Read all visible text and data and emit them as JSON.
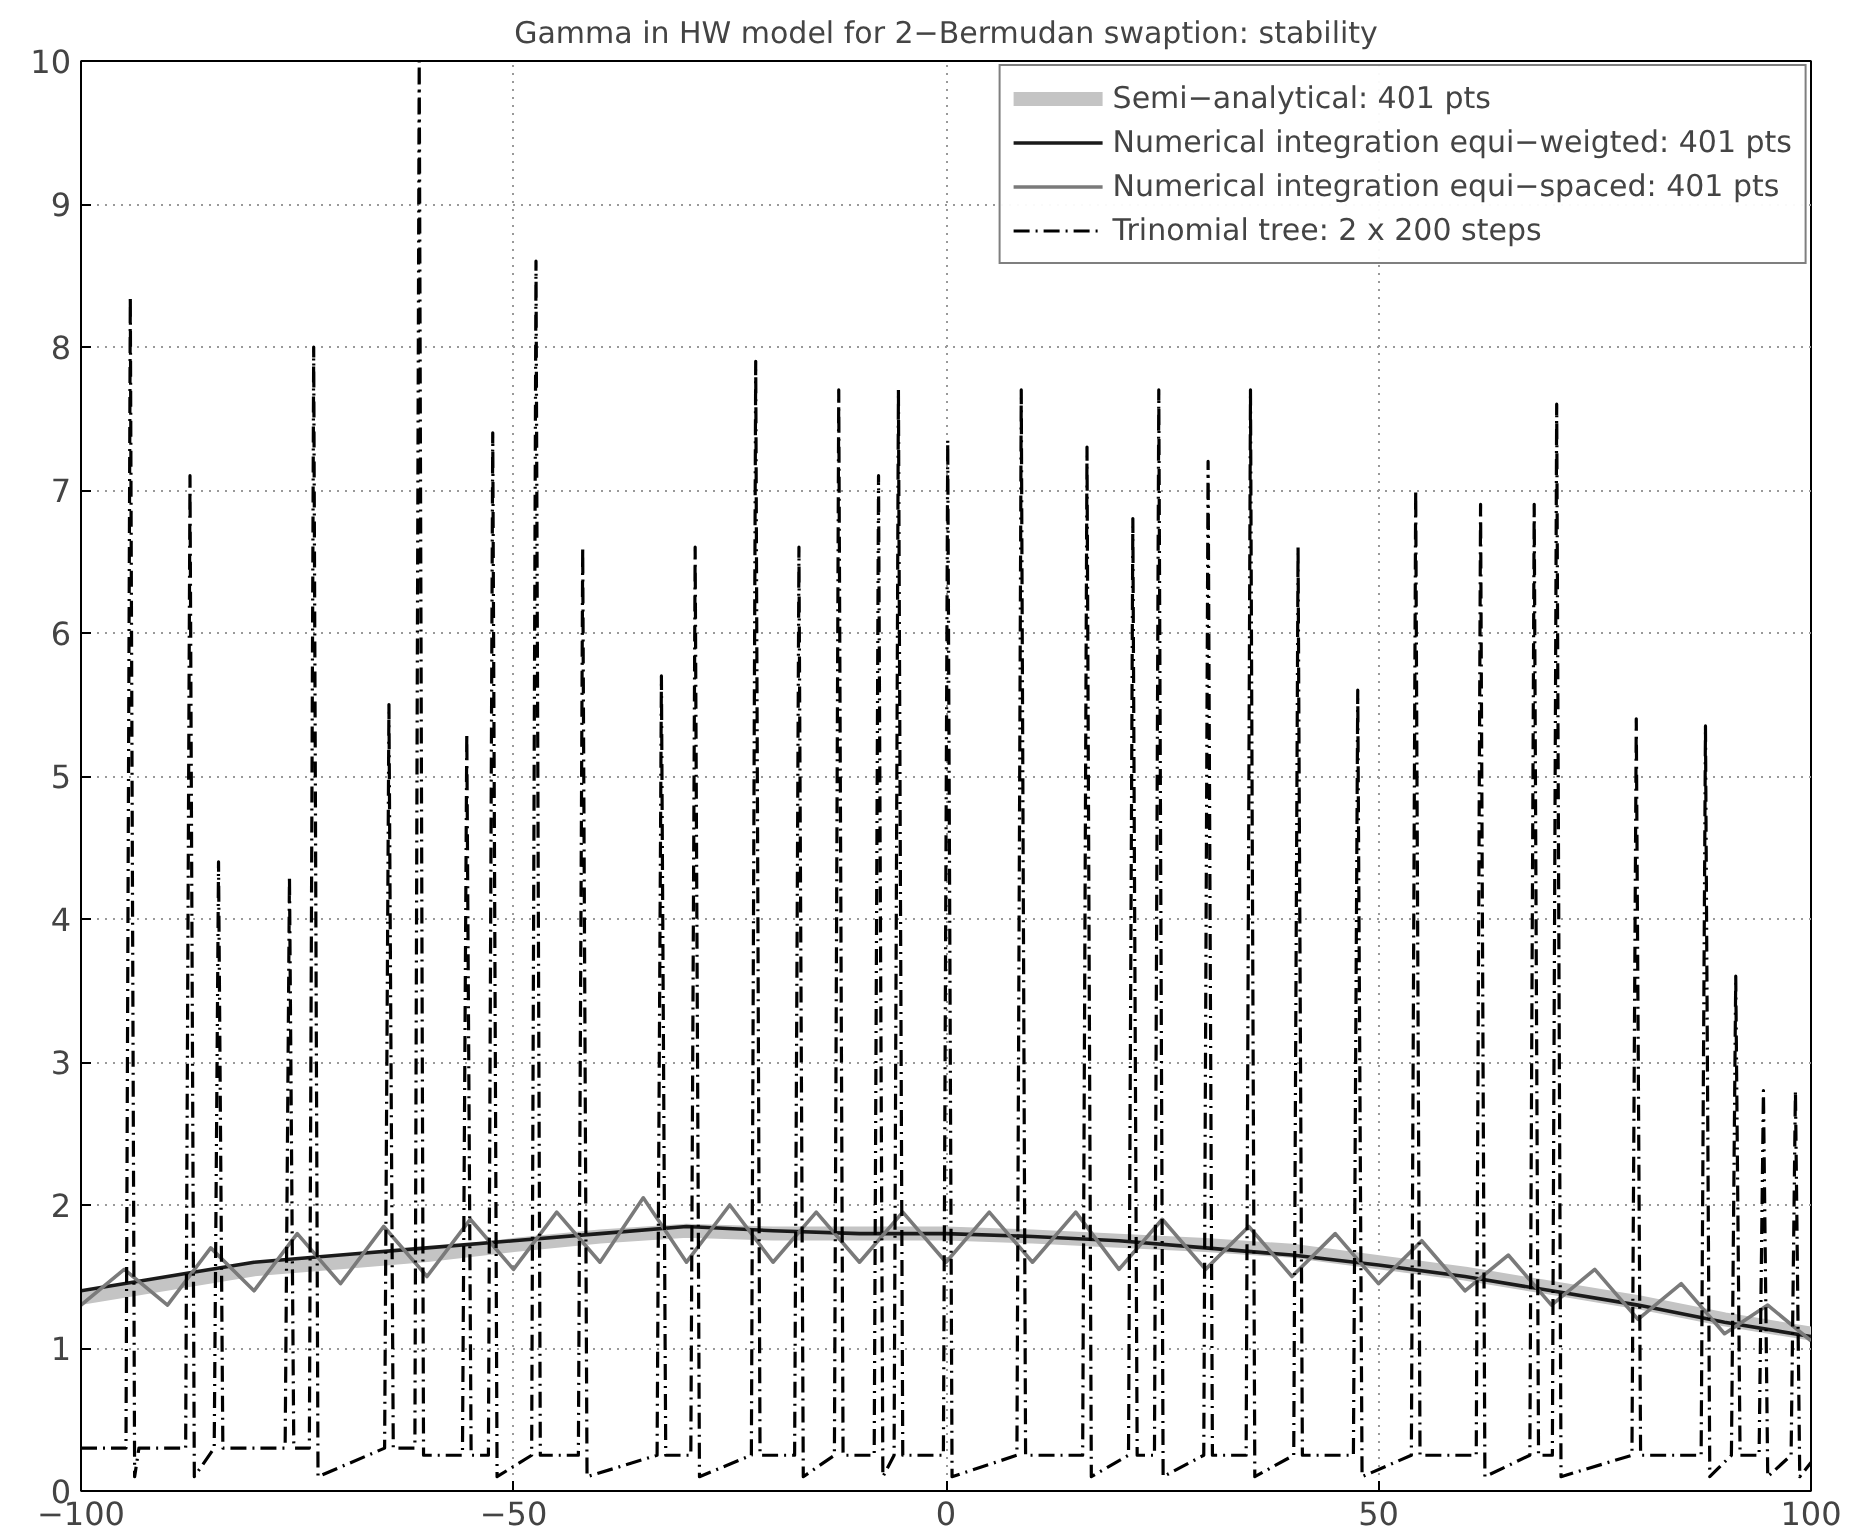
{
  "chart_data": {
    "type": "line",
    "title": "Gamma in HW model for 2−Bermudan swaption: stability",
    "xlim": [
      -100,
      100
    ],
    "ylim": [
      0,
      10
    ],
    "xticks": [
      -100,
      -50,
      0,
      50,
      100
    ],
    "yticks": [
      0,
      1,
      2,
      3,
      4,
      5,
      6,
      7,
      8,
      9,
      10
    ],
    "grid": true,
    "legend": "top right",
    "marker": "none",
    "series": [
      {
        "name": "Semi−analytical: 401 pts",
        "color": "#c4c4c4",
        "line_style": "solid",
        "x": [
          -100,
          -90,
          -80,
          -70,
          -60,
          -50,
          -40,
          -30,
          -20,
          -10,
          0,
          10,
          20,
          30,
          40,
          50,
          60,
          70,
          80,
          90,
          100
        ],
        "values": [
          1.35,
          1.45,
          1.55,
          1.6,
          1.65,
          1.72,
          1.78,
          1.82,
          1.8,
          1.8,
          1.8,
          1.78,
          1.75,
          1.72,
          1.68,
          1.6,
          1.52,
          1.42,
          1.32,
          1.2,
          1.1
        ]
      },
      {
        "name": "Numerical integration equi−weigted: 401 pts",
        "color": "#1a1a1a",
        "line_style": "solid",
        "x": [
          -100,
          -90,
          -80,
          -70,
          -60,
          -50,
          -40,
          -30,
          -20,
          -10,
          0,
          10,
          20,
          30,
          40,
          50,
          60,
          70,
          80,
          90,
          100
        ],
        "values": [
          1.4,
          1.5,
          1.6,
          1.65,
          1.7,
          1.75,
          1.8,
          1.85,
          1.82,
          1.8,
          1.8,
          1.78,
          1.75,
          1.7,
          1.65,
          1.58,
          1.5,
          1.4,
          1.3,
          1.18,
          1.08
        ]
      },
      {
        "name": "Numerical integration equi−spaced: 401 pts",
        "color": "#7a7a7a",
        "line_style": "solid",
        "x": [
          -100,
          -95,
          -90,
          -85,
          -80,
          -75,
          -70,
          -65,
          -60,
          -55,
          -50,
          -45,
          -40,
          -35,
          -30,
          -25,
          -20,
          -15,
          -10,
          -5,
          0,
          5,
          10,
          15,
          20,
          25,
          30,
          35,
          40,
          45,
          50,
          55,
          60,
          65,
          70,
          75,
          80,
          85,
          90,
          95,
          100
        ],
        "values": [
          1.3,
          1.55,
          1.3,
          1.7,
          1.4,
          1.8,
          1.45,
          1.85,
          1.5,
          1.9,
          1.55,
          1.95,
          1.6,
          2.05,
          1.6,
          2.0,
          1.6,
          1.95,
          1.6,
          1.95,
          1.6,
          1.95,
          1.6,
          1.95,
          1.55,
          1.9,
          1.55,
          1.85,
          1.5,
          1.8,
          1.45,
          1.75,
          1.4,
          1.65,
          1.3,
          1.55,
          1.2,
          1.45,
          1.1,
          1.3,
          1.05
        ]
      },
      {
        "name": "Trinomial tree: 2 x 200 steps",
        "color": "#000000",
        "line_style": "dashdot",
        "x": [
          -100,
          -94.8,
          -94.3,
          -93.8,
          -93.3,
          -87.9,
          -87.4,
          -86.9,
          -84.6,
          -84.1,
          -83.6,
          -76.4,
          -75.9,
          -75.4,
          -73.6,
          -73.1,
          -72.6,
          -64.9,
          -64.4,
          -63.9,
          -61.4,
          -60.9,
          -60.4,
          -55.9,
          -55.4,
          -54.9,
          -52.9,
          -52.4,
          -51.9,
          -47.9,
          -47.4,
          -46.9,
          -42.5,
          -42,
          -41.5,
          -33.4,
          -32.9,
          -32.4,
          -29.5,
          -29,
          -28.5,
          -22.5,
          -22,
          -21.5,
          -17.5,
          -17,
          -16.5,
          -12.9,
          -12.4,
          -11.9,
          -8.3,
          -7.8,
          -7.3,
          -6,
          -5.5,
          -5,
          -0.3,
          0.2,
          0.7,
          8.2,
          8.7,
          9.2,
          15.8,
          16.3,
          16.8,
          21.1,
          21.6,
          22.1,
          24.1,
          24.6,
          25.1,
          29.8,
          30.3,
          30.8,
          34.7,
          35.2,
          35.7,
          40.2,
          40.7,
          41.2,
          47.1,
          47.6,
          48.1,
          53.8,
          54.3,
          54.8,
          61.3,
          61.8,
          62.3,
          67.5,
          68,
          68.5,
          70.1,
          70.6,
          71.1,
          79.3,
          79.8,
          80.3,
          87.3,
          87.8,
          88.3,
          90.8,
          91.3,
          91.8,
          94,
          94.5,
          95,
          97.7,
          98.2,
          98.7,
          100
        ],
        "values": [
          0.3,
          0.3,
          8.35,
          0.1,
          0.3,
          0.3,
          7.1,
          0.1,
          0.3,
          4.4,
          0.3,
          0.3,
          4.3,
          0.3,
          0.3,
          8.0,
          0.1,
          0.3,
          5.5,
          0.3,
          0.3,
          10,
          0.25,
          0.25,
          5.3,
          0.25,
          0.25,
          7.4,
          0.1,
          0.25,
          8.6,
          0.25,
          0.25,
          6.6,
          0.1,
          0.25,
          5.7,
          0.25,
          0.25,
          6.6,
          0.1,
          0.25,
          7.9,
          0.25,
          0.25,
          6.6,
          0.1,
          0.25,
          7.7,
          0.25,
          0.25,
          7.1,
          0.1,
          0.25,
          7.7,
          0.25,
          0.25,
          7.35,
          0.1,
          0.25,
          7.7,
          0.25,
          0.25,
          7.3,
          0.1,
          0.25,
          6.8,
          0.25,
          0.25,
          7.7,
          0.1,
          0.25,
          7.2,
          0.25,
          0.25,
          7.7,
          0.1,
          0.25,
          6.6,
          0.25,
          0.25,
          5.6,
          0.1,
          0.25,
          7.0,
          0.25,
          0.25,
          6.9,
          0.1,
          0.25,
          6.9,
          0.25,
          0.25,
          7.6,
          0.1,
          0.25,
          5.4,
          0.25,
          0.25,
          5.35,
          0.1,
          0.25,
          3.6,
          0.25,
          0.25,
          2.8,
          0.1,
          0.25,
          2.8,
          0.1,
          0.2
        ]
      }
    ]
  }
}
